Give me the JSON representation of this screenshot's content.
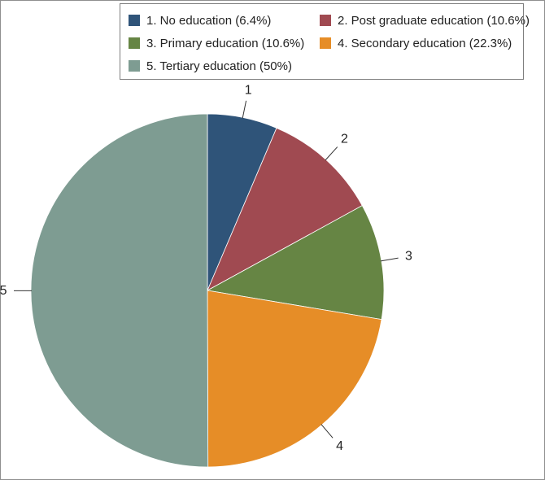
{
  "chart_data": {
    "type": "pie",
    "slices": [
      {
        "id": "1",
        "label": "1. No education (6.4%)",
        "value": 6.4,
        "color": "#2F5479"
      },
      {
        "id": "2",
        "label": "2. Post graduate education (10.6%)",
        "value": 10.6,
        "color": "#A04A51"
      },
      {
        "id": "3",
        "label": "3. Primary education (10.6%)",
        "value": 10.6,
        "color": "#668544"
      },
      {
        "id": "4",
        "label": "4. Secondary education (22.3%)",
        "value": 22.3,
        "color": "#E68D27"
      },
      {
        "id": "5",
        "label": "5. Tertiary education (50%)",
        "value": 50,
        "color": "#7E9C92"
      }
    ],
    "legend_position": "top"
  }
}
